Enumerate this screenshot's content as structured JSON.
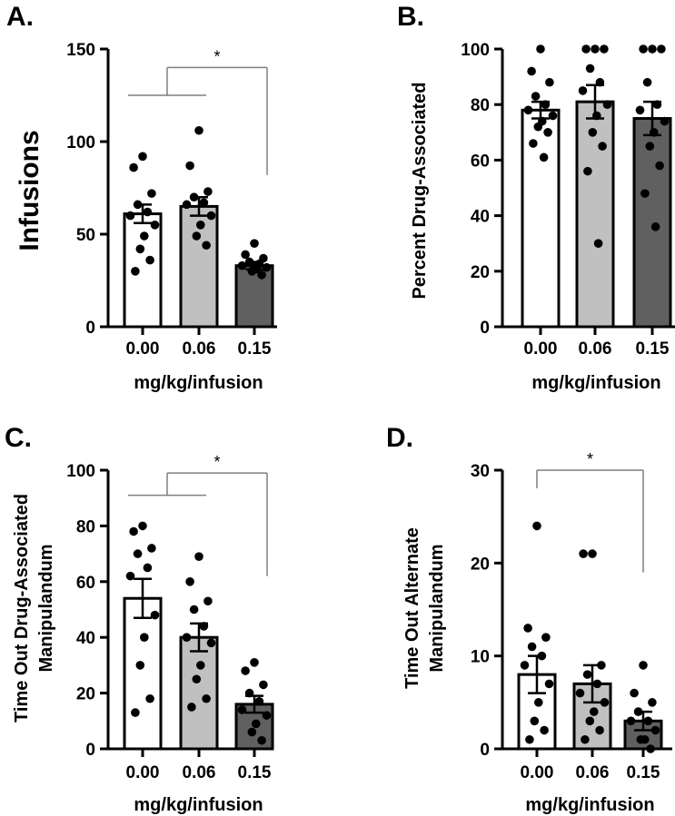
{
  "figure": {
    "colors": {
      "axis": "#000000",
      "bracket": "#7f7f7f",
      "bar_fill": [
        "#ffffff",
        "#c0c0c0",
        "#606060"
      ],
      "point": "#000000"
    }
  },
  "chart_data": [
    {
      "panel_label": "A.",
      "type": "bar",
      "categories": [
        "0.00",
        "0.06",
        "0.15"
      ],
      "values": [
        61,
        65,
        33
      ],
      "sem": [
        5,
        5,
        2
      ],
      "points": [
        [
          92,
          86,
          72,
          66,
          62,
          60,
          55,
          49,
          42,
          36,
          30
        ],
        [
          106,
          87,
          73,
          70,
          67,
          66,
          60,
          55,
          49,
          44
        ],
        [
          45,
          39,
          37,
          35,
          34,
          33,
          32,
          31,
          30,
          28
        ]
      ],
      "xlabel": "mg/kg/infusion",
      "ylabel": "Infusions",
      "ylabel_lines": [],
      "ylim": [
        0,
        150
      ],
      "yticks": [
        0,
        50,
        100,
        150
      ],
      "ytick_labels": [
        "0",
        "50",
        "100",
        "150"
      ],
      "significance": {
        "text": "*",
        "type": "group-vs-third",
        "y_high": 140,
        "y_low": 125,
        "right_drop": 82
      }
    },
    {
      "panel_label": "B.",
      "type": "bar",
      "categories": [
        "0.00",
        "0.06",
        "0.15"
      ],
      "values": [
        78,
        81,
        75
      ],
      "sem": [
        3,
        6,
        6
      ],
      "points": [
        [
          100,
          92,
          88,
          83,
          80,
          78,
          76,
          74,
          72,
          70,
          66,
          61
        ],
        [
          100,
          100,
          100,
          93,
          88,
          85,
          80,
          76,
          70,
          65,
          56,
          30
        ],
        [
          100,
          100,
          100,
          88,
          80,
          78,
          74,
          70,
          65,
          58,
          48,
          36
        ]
      ],
      "xlabel": "mg/kg/infusion",
      "ylabel": "Percent Drug-Associated",
      "ylabel_lines": [],
      "ylim": [
        0,
        100
      ],
      "yticks": [
        0,
        20,
        40,
        60,
        80,
        100
      ],
      "ytick_labels": [
        "0",
        "20",
        "40",
        "60",
        "80",
        "100"
      ],
      "significance": null
    },
    {
      "panel_label": "C.",
      "type": "bar",
      "categories": [
        "0.00",
        "0.06",
        "0.15"
      ],
      "values": [
        54,
        40,
        16
      ],
      "sem": [
        7,
        5,
        3
      ],
      "points": [
        [
          80,
          78,
          72,
          70,
          65,
          62,
          48,
          40,
          30,
          18,
          13
        ],
        [
          69,
          60,
          53,
          50,
          44,
          40,
          38,
          30,
          25,
          18,
          15
        ],
        [
          31,
          28,
          23,
          20,
          17,
          14,
          12,
          9,
          6,
          3
        ]
      ],
      "xlabel": "mg/kg/infusion",
      "ylabel": "",
      "ylabel_lines": [
        "Time Out Drug-Associated",
        "Manipulandum"
      ],
      "ylim": [
        0,
        100
      ],
      "yticks": [
        0,
        20,
        40,
        60,
        80,
        100
      ],
      "ytick_labels": [
        "0",
        "20",
        "40",
        "60",
        "80",
        "100"
      ],
      "significance": {
        "text": "*",
        "type": "group-vs-third",
        "y_high": 99,
        "y_low": 91,
        "right_drop": 62
      }
    },
    {
      "panel_label": "D.",
      "type": "bar",
      "categories": [
        "0.00",
        "0.06",
        "0.15"
      ],
      "values": [
        8,
        7,
        3
      ],
      "sem": [
        2,
        2,
        1
      ],
      "points": [
        [
          24,
          13,
          12,
          11,
          10,
          9,
          7,
          5,
          3,
          2,
          1
        ],
        [
          21,
          21,
          9,
          8,
          7,
          6,
          5,
          4,
          3,
          2,
          1
        ],
        [
          9,
          6,
          5,
          4,
          3,
          3,
          2,
          1,
          1,
          0
        ]
      ],
      "xlabel": "mg/kg/infusion",
      "ylabel": "",
      "ylabel_lines": [
        "Time Out Alternate",
        "Manipulandum"
      ],
      "ylim": [
        0,
        30
      ],
      "yticks": [
        0,
        10,
        20,
        30
      ],
      "ytick_labels": [
        "0",
        "10",
        "20",
        "30"
      ],
      "significance": {
        "text": "*",
        "type": "pair",
        "y_high": 30,
        "drop_to": 19
      }
    }
  ]
}
